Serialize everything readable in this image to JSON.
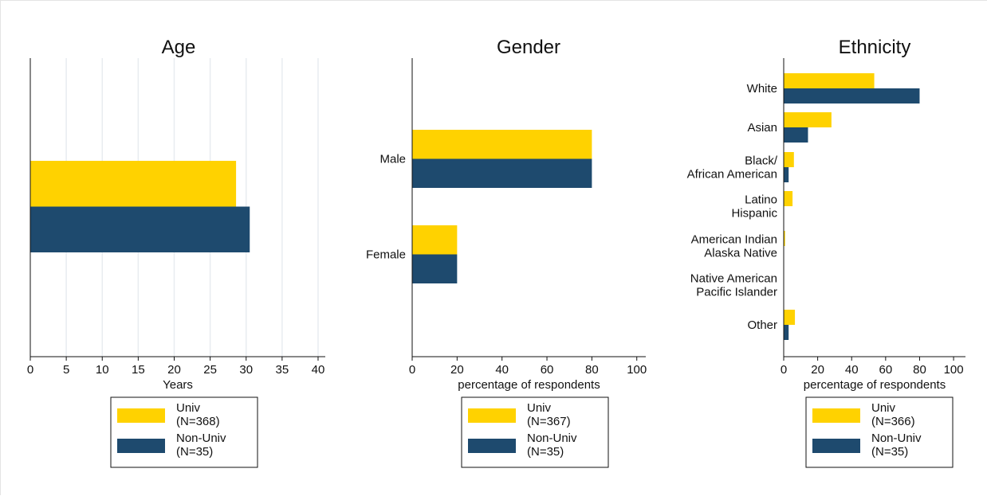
{
  "colors": {
    "univ": "#FFD200",
    "nonuniv": "#1E4A6E",
    "grid": "#E8ECF0",
    "axis": "#111111"
  },
  "chart_data": [
    {
      "type": "bar",
      "title": "Age",
      "xlabel": "Years",
      "ylabel": "",
      "orientation": "horizontal",
      "categories": [
        ""
      ],
      "series": [
        {
          "name": "Univ\n(N=368)",
          "values": [
            28.6
          ]
        },
        {
          "name": "Non-Univ\n(N=35)",
          "values": [
            30.5
          ]
        }
      ],
      "xlim": [
        0,
        41
      ],
      "xticks": [
        0,
        5,
        10,
        15,
        20,
        25,
        30,
        35,
        40
      ],
      "grid": true,
      "legend": "bottom"
    },
    {
      "type": "bar",
      "title": "Gender",
      "xlabel": "percentage of respondents",
      "ylabel": "",
      "orientation": "horizontal",
      "categories": [
        "Male",
        "Female"
      ],
      "series": [
        {
          "name": "Univ\n(N=367)",
          "values": [
            80,
            20
          ]
        },
        {
          "name": "Non-Univ\n(N=35)",
          "values": [
            80,
            20
          ]
        }
      ],
      "xlim": [
        0,
        104
      ],
      "xticks": [
        0,
        20,
        40,
        60,
        80,
        100
      ],
      "grid": false,
      "legend": "bottom"
    },
    {
      "type": "bar",
      "title": "Ethnicity",
      "xlabel": "percentage of respondents",
      "ylabel": "",
      "orientation": "horizontal",
      "categories": [
        "White",
        "Asian",
        "Black/\nAfrican American",
        "Latino\nHispanic",
        "American Indian\nAlaska Native",
        "Native American\nPacific Islander",
        "Other"
      ],
      "series": [
        {
          "name": "Univ\n(N=366)",
          "values": [
            53.3,
            28.1,
            6,
            5.2,
            0.8,
            0,
            6.6
          ]
        },
        {
          "name": "Non-Univ\n(N=35)",
          "values": [
            80,
            14.3,
            2.9,
            0,
            0,
            0,
            2.9
          ]
        }
      ],
      "xlim": [
        0,
        107
      ],
      "xticks": [
        0,
        20,
        40,
        60,
        80,
        100
      ],
      "grid": false,
      "legend": "bottom"
    }
  ]
}
